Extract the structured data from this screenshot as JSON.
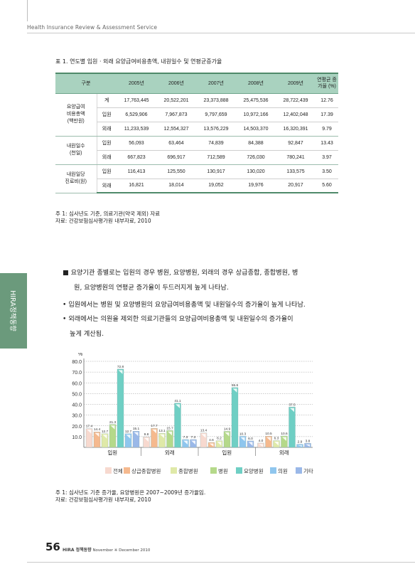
{
  "header": {
    "title": "Health Insurance Review & Assessment Service"
  },
  "side_tab": {
    "label": "HIRA정책동향"
  },
  "table": {
    "title": "표 1. 연도별 입원 · 외래 요양급여비용총액, 내원일수 및 연평균증가율",
    "headers": [
      "구분",
      "2005년",
      "2006년",
      "2007년",
      "2008년",
      "2009년",
      "연평균 증가율 (%)"
    ],
    "groups": [
      {
        "label_lines": [
          "요양급여",
          "비용총액",
          "(백만원)"
        ],
        "rows": [
          {
            "sub": "계",
            "values": [
              "17,763,445",
              "20,522,201",
              "23,373,888",
              "25,475,536",
              "28,722,439",
              "12.76"
            ]
          },
          {
            "sub": "입원",
            "values": [
              "6,529,906",
              "7,967,873",
              "9,797,659",
              "10,972,166",
              "12,402,048",
              "17.39"
            ]
          },
          {
            "sub": "외래",
            "values": [
              "11,233,539",
              "12,554,327",
              "13,576,229",
              "14,503,370",
              "16,320,391",
              "9.79"
            ]
          }
        ]
      },
      {
        "label_lines": [
          "내원일수",
          "(천일)"
        ],
        "rows": [
          {
            "sub": "입원",
            "values": [
              "56,093",
              "63,464",
              "74,839",
              "84,388",
              "92,847",
              "13.43"
            ]
          },
          {
            "sub": "외래",
            "values": [
              "667,823",
              "696,917",
              "712,589",
              "726,030",
              "780,241",
              "3.97"
            ]
          }
        ]
      },
      {
        "label_lines": [
          "내원일당",
          "진료비(원)"
        ],
        "rows": [
          {
            "sub": "입원",
            "values": [
              "116,413",
              "125,550",
              "130,917",
              "130,020",
              "133,575",
              "3.50"
            ]
          },
          {
            "sub": "외래",
            "values": [
              "16,821",
              "18,014",
              "19,052",
              "19,976",
              "20,917",
              "5.60"
            ]
          }
        ]
      }
    ],
    "notes": [
      "주 1: 심사년도 기준, 의료기관(약국 제외) 자료",
      "자료: 건강보험심사평가원 내부자료, 2010"
    ]
  },
  "paragraph": {
    "lines": [
      "■  요양기관 종별로는 입원의 경우 병원, 요양병원, 외래의 경우 상급종합, 종합병원, 병",
      "원, 요양병원의 연평균 증가율이 두드러지게 높게 나타남.",
      "• 입원에서는 병원 및 요양병원의 요양급여비용총액 및 내원일수의 증가율이 높게 나타남.",
      "• 외래에서는 의원을 제외한 의료기관들의 요양급여비용총액 및 내원일수의 증가율이",
      "높게 계산됨."
    ]
  },
  "chart_data": {
    "type": "bar",
    "ylabel": "%",
    "ylim": [
      0,
      80
    ],
    "yticks": [
      "80.0",
      "70.0",
      "60.0",
      "50.0",
      "40.0",
      "30.0",
      "20.0",
      "10.0"
    ],
    "series_names": [
      "전체",
      "상급종합병원",
      "종합병원",
      "병원",
      "요양병원",
      "의원",
      "기타"
    ],
    "colors": [
      "#f7d9cf",
      "#f5b98e",
      "#dfe9a8",
      "#b5d98a",
      "#6fcfc4",
      "#8fc6ee",
      "#9ab8e8"
    ],
    "groups": [
      {
        "label": "입원",
        "sublabel": "",
        "values": [
          17.4,
          14.4,
          12.7,
          21.3,
          72.8,
          12.7,
          15.1
        ],
        "labels": [
          "17.4",
          "14.4",
          "12.7",
          "21.3",
          "72.8",
          "12.7",
          "15.1"
        ]
      },
      {
        "label": "외래",
        "sublabel": "",
        "values": [
          9.8,
          17.7,
          13.1,
          15.7,
          41.1,
          7.3,
          7.3
        ],
        "labels": [
          "9.8",
          "17.7",
          "13.1",
          "15.7",
          "41.1",
          "7.3",
          "7.3"
        ]
      },
      {
        "label": "입원",
        "sublabel": "",
        "values": [
          13.4,
          4.6,
          6.2,
          14.9,
          55.6,
          10.3,
          6.0
        ],
        "labels": [
          "13.4",
          "4.6",
          "6.2",
          "14.9",
          "55.6",
          "10.3",
          "6.0"
        ]
      },
      {
        "label": "외래",
        "sublabel": "",
        "values": [
          4.0,
          10.5,
          6.3,
          10.6,
          37.5,
          2.9,
          3.8
        ],
        "labels": [
          "4.0",
          "10.5",
          "6.3",
          "10.6",
          "37.5",
          "2.9",
          "3.8"
        ]
      }
    ],
    "notes": [
      "주 1: 심사년도 기준 증가율, 요양병원은 2007~2009년 증가율임.",
      "자료: 건강보험심사평가원 내부자료, 2010"
    ]
  },
  "footer": {
    "page_number": "56",
    "brand": "HIRA 정책동향",
    "issue": "November ※ December 2010"
  }
}
